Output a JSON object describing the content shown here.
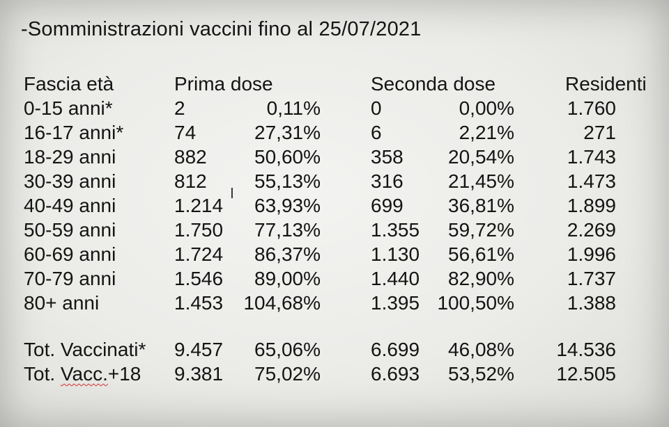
{
  "title": "-Somministrazioni vaccini fino al 25/07/2021",
  "headers": {
    "fascia": "Fascia età",
    "prima": "Prima dose",
    "seconda": "Seconda dose",
    "residenti": "Residenti"
  },
  "rows": [
    {
      "fascia": "0-15 anni*",
      "prima_n": "2",
      "prima_pct": "0,11%",
      "seconda_n": "0",
      "seconda_pct": "0,00%",
      "residenti": "1.760"
    },
    {
      "fascia": "16-17 anni*",
      "prima_n": "74",
      "prima_pct": "27,31%",
      "seconda_n": "6",
      "seconda_pct": "2,21%",
      "residenti": "271"
    },
    {
      "fascia": "18-29 anni",
      "prima_n": "882",
      "prima_pct": "50,60%",
      "seconda_n": "358",
      "seconda_pct": "20,54%",
      "residenti": "1.743"
    },
    {
      "fascia": "30-39 anni",
      "prima_n": "812",
      "prima_pct": "55,13%",
      "seconda_n": "316",
      "seconda_pct": "21,45%",
      "residenti": "1.473"
    },
    {
      "fascia": "40-49 anni",
      "prima_n": "1.214",
      "prima_pct": "63,93%",
      "seconda_n": "699",
      "seconda_pct": "36,81%",
      "residenti": "1.899"
    },
    {
      "fascia": "50-59 anni",
      "prima_n": "1.750",
      "prima_pct": "77,13%",
      "seconda_n": "1.355",
      "seconda_pct": "59,72%",
      "residenti": "2.269"
    },
    {
      "fascia": "60-69 anni",
      "prima_n": "1.724",
      "prima_pct": "86,37%",
      "seconda_n": "1.130",
      "seconda_pct": "56,61%",
      "residenti": "1.996"
    },
    {
      "fascia": "70-79 anni",
      "prima_n": "1.546",
      "prima_pct": "89,00%",
      "seconda_n": "1.440",
      "seconda_pct": "82,90%",
      "residenti": "1.737"
    },
    {
      "fascia": "80+ anni",
      "prima_n": "1.453",
      "prima_pct": "104,68%",
      "seconda_n": "1.395",
      "seconda_pct": "100,50%",
      "residenti": "1.388"
    }
  ],
  "totals": [
    {
      "fascia": "Tot. Vaccinati*",
      "prima_n": "9.457",
      "prima_pct": "65,06%",
      "seconda_n": "6.699",
      "seconda_pct": "46,08%",
      "residenti": "14.536"
    },
    {
      "fascia_a": "Tot. ",
      "fascia_b": "Vacc.",
      "fascia_c": "+18",
      "prima_n": "9.381",
      "prima_pct": "75,02%",
      "seconda_n": "6.693",
      "seconda_pct": "53,52%",
      "residenti": "12.505"
    }
  ],
  "cursor_glyph": "I"
}
